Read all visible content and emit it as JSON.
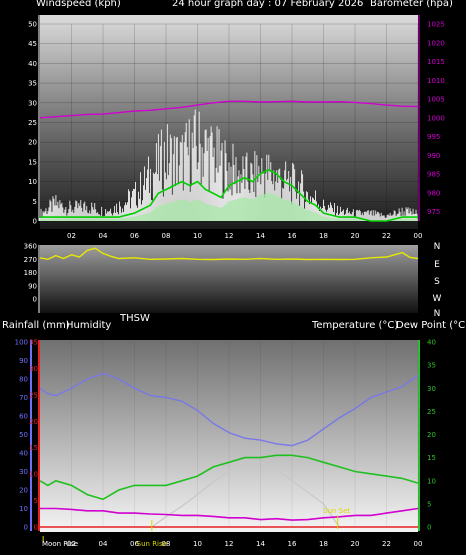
{
  "header": {
    "left": "Windspeed (kph)",
    "center": "24 hour graph day : 07 February 2026",
    "right": "Barometer (hpa)"
  },
  "colors": {
    "wind_gust": "#ffffff",
    "wind_avg": "#00d000",
    "wind_fill": "#a8e8a8",
    "barometer": "#d000d0",
    "direction": "#e8e800",
    "humidity": "#7878e8",
    "temperature": "#20c020",
    "dew_point": "#d000d0",
    "rainfall": "#e82020",
    "sun": "#c8c8c8",
    "events": "#d8d800",
    "axis_hum": "#7070ff",
    "axis_temp": "#30c030"
  },
  "chart_data": [
    {
      "type": "line",
      "title": "24 hour graph day : 07 February 2026",
      "ylabel": "Windspeed (kph)",
      "y2label": "Barometer (hpa)",
      "ylim": [
        0,
        50
      ],
      "y_ticks": [
        "0",
        "5",
        "10",
        "15",
        "20",
        "25",
        "30",
        "35",
        "40",
        "45",
        "50"
      ],
      "y2lim": [
        972.5,
        1025
      ],
      "y2_ticks": [
        "975",
        "980",
        "985",
        "990",
        "995",
        "1000",
        "1005",
        "1010",
        "1015",
        "1020",
        "1025"
      ],
      "xlim": [
        0,
        24
      ],
      "x_ticks": [
        "02",
        "04",
        "06",
        "08",
        "10",
        "12",
        "14",
        "16",
        "18",
        "20",
        "22",
        "00"
      ],
      "series": [
        {
          "name": "Wind Gust",
          "x": [
            0,
            1,
            2,
            3,
            4,
            5,
            6,
            7,
            7.5,
            8,
            8.5,
            9,
            9.5,
            10,
            10.5,
            11,
            11.5,
            12,
            12.5,
            13,
            13.5,
            14,
            14.5,
            15,
            15.5,
            16,
            16.5,
            17,
            17.5,
            18,
            19,
            20,
            21,
            22,
            23,
            24
          ],
          "values": [
            3,
            7,
            5,
            6,
            4,
            6,
            10,
            18,
            22,
            26,
            25,
            24,
            28,
            30,
            29,
            26,
            23,
            21,
            19,
            18,
            17,
            20,
            19,
            18,
            16,
            15,
            14,
            10,
            9,
            6,
            4,
            3,
            3,
            2,
            4,
            3
          ]
        },
        {
          "name": "Average Wind",
          "x": [
            0,
            1,
            2,
            3,
            4,
            5,
            6,
            7,
            7.5,
            8,
            8.5,
            9,
            9.5,
            10,
            10.5,
            11,
            11.5,
            12,
            12.5,
            13,
            13.5,
            14,
            14.5,
            15,
            15.5,
            16,
            16.5,
            17,
            17.5,
            18,
            19,
            20,
            21,
            22,
            23,
            24
          ],
          "values": [
            1,
            1,
            1,
            1,
            1,
            1,
            2,
            4,
            7,
            8,
            9,
            10,
            9,
            10,
            8,
            7,
            6,
            9,
            10,
            11,
            10,
            12,
            13,
            12,
            10,
            9,
            7,
            5,
            4,
            2,
            1,
            1,
            0,
            0,
            1,
            1
          ]
        },
        {
          "name": "Barometer",
          "x": [
            0,
            1,
            2,
            3,
            4,
            5,
            6,
            7,
            8,
            9,
            10,
            11,
            12,
            13,
            14,
            15,
            16,
            17,
            18,
            19,
            20,
            21,
            22,
            23,
            24
          ],
          "values": [
            1000,
            1000.3,
            1000.6,
            1000.9,
            1001,
            1001.4,
            1001.8,
            1002,
            1002.4,
            1002.8,
            1003.4,
            1004,
            1004.4,
            1004.4,
            1004.2,
            1004.3,
            1004.4,
            1004.2,
            1004.2,
            1004.3,
            1004.1,
            1003.8,
            1003.4,
            1003.1,
            1003
          ]
        }
      ]
    },
    {
      "type": "line",
      "title": "",
      "ylabel": "",
      "ylim": [
        0,
        360
      ],
      "y_ticks": [
        "0",
        "90",
        "180",
        "270",
        "360"
      ],
      "y2_ticks": [
        "N",
        "W",
        "S",
        "E",
        "N"
      ],
      "xlim": [
        0,
        24
      ],
      "series": [
        {
          "name": "Wind Direction",
          "x": [
            0,
            0.5,
            1,
            1.5,
            2,
            2.5,
            3,
            3.5,
            4,
            4.5,
            5,
            6,
            7,
            8,
            9,
            10,
            11,
            12,
            13,
            14,
            15,
            16,
            17,
            18,
            19,
            20,
            21,
            22,
            23,
            23.5,
            24
          ],
          "values": [
            280,
            270,
            295,
            275,
            300,
            285,
            330,
            345,
            310,
            290,
            275,
            280,
            270,
            272,
            275,
            270,
            268,
            272,
            270,
            275,
            270,
            272,
            268,
            270,
            268,
            270,
            280,
            285,
            315,
            282,
            275
          ]
        }
      ]
    },
    {
      "type": "line",
      "title": "",
      "legend_labels": [
        "Rainfall (mm)",
        "Humidity",
        "THSW",
        "Temperature (°C)",
        "Dew Point (°C)"
      ],
      "xlim": [
        0,
        24
      ],
      "x_ticks": [
        "02",
        "04",
        "06",
        "08",
        "10",
        "12",
        "14",
        "16",
        "18",
        "20",
        "22",
        "00"
      ],
      "humidity_axis": {
        "lim": [
          0,
          100
        ],
        "ticks": [
          "0",
          "10",
          "20",
          "30",
          "40",
          "50",
          "60",
          "70",
          "80",
          "90",
          "100"
        ]
      },
      "rain_axis": {
        "lim": [
          0,
          35
        ],
        "ticks": [
          "0",
          "5",
          "10",
          "15",
          "20",
          "25",
          "30",
          "35"
        ]
      },
      "temp_axis": {
        "lim": [
          0,
          40
        ],
        "ticks": [
          "0",
          "5",
          "10",
          "15",
          "20",
          "25",
          "30",
          "35",
          "40"
        ]
      },
      "series": [
        {
          "name": "Humidity",
          "x": [
            0,
            0.5,
            1,
            2,
            3,
            4,
            5,
            6,
            7,
            8,
            9,
            10,
            11,
            12,
            13,
            14,
            15,
            16,
            17,
            18,
            19,
            20,
            21,
            22,
            23,
            24
          ],
          "values": [
            75,
            72,
            71,
            75,
            80,
            83,
            80,
            75,
            71,
            70,
            68,
            63,
            56,
            51,
            48,
            47,
            45,
            44,
            47,
            53,
            59,
            64,
            70,
            73,
            76,
            82
          ]
        },
        {
          "name": "Temperature",
          "x": [
            0,
            0.5,
            1,
            2,
            3,
            4,
            5,
            6,
            7,
            8,
            9,
            10,
            11,
            12,
            13,
            14,
            15,
            16,
            17,
            18,
            19,
            20,
            21,
            22,
            23,
            24
          ],
          "values": [
            10,
            9,
            10,
            9,
            7,
            6,
            8,
            9,
            9,
            9,
            10,
            11,
            13,
            14,
            15,
            15,
            15.5,
            15.5,
            15,
            14,
            13,
            12,
            11.5,
            11,
            10.5,
            9.5
          ]
        },
        {
          "name": "Dew Point",
          "x": [
            0,
            1,
            2,
            3,
            4,
            5,
            6,
            7,
            8,
            9,
            10,
            11,
            12,
            13,
            14,
            15,
            16,
            17,
            18,
            19,
            20,
            21,
            22,
            23,
            24
          ],
          "values": [
            4,
            4,
            3.8,
            3.5,
            3.5,
            3,
            3,
            2.8,
            2.7,
            2.5,
            2.5,
            2.3,
            2,
            2,
            1.6,
            1.8,
            1.5,
            1.6,
            2,
            2.2,
            2.5,
            2.5,
            3,
            3.5,
            4
          ]
        },
        {
          "name": "Rainfall",
          "x": [
            0,
            24
          ],
          "values": [
            0,
            0
          ]
        },
        {
          "name": "Sun",
          "x": [
            7.1,
            8,
            9,
            10,
            11,
            12,
            13,
            14,
            15,
            16,
            17,
            18,
            19
          ],
          "values": [
            0,
            2.2,
            4.5,
            7,
            9.8,
            12,
            14.5,
            14,
            12.5,
            10,
            7.5,
            5,
            0
          ]
        }
      ],
      "events": [
        {
          "label": "Moon Rise",
          "x": 0.2
        },
        {
          "label": "Sun Rise",
          "x": 7.1
        },
        {
          "label": "Sun Set",
          "x": 18.9
        }
      ]
    }
  ]
}
